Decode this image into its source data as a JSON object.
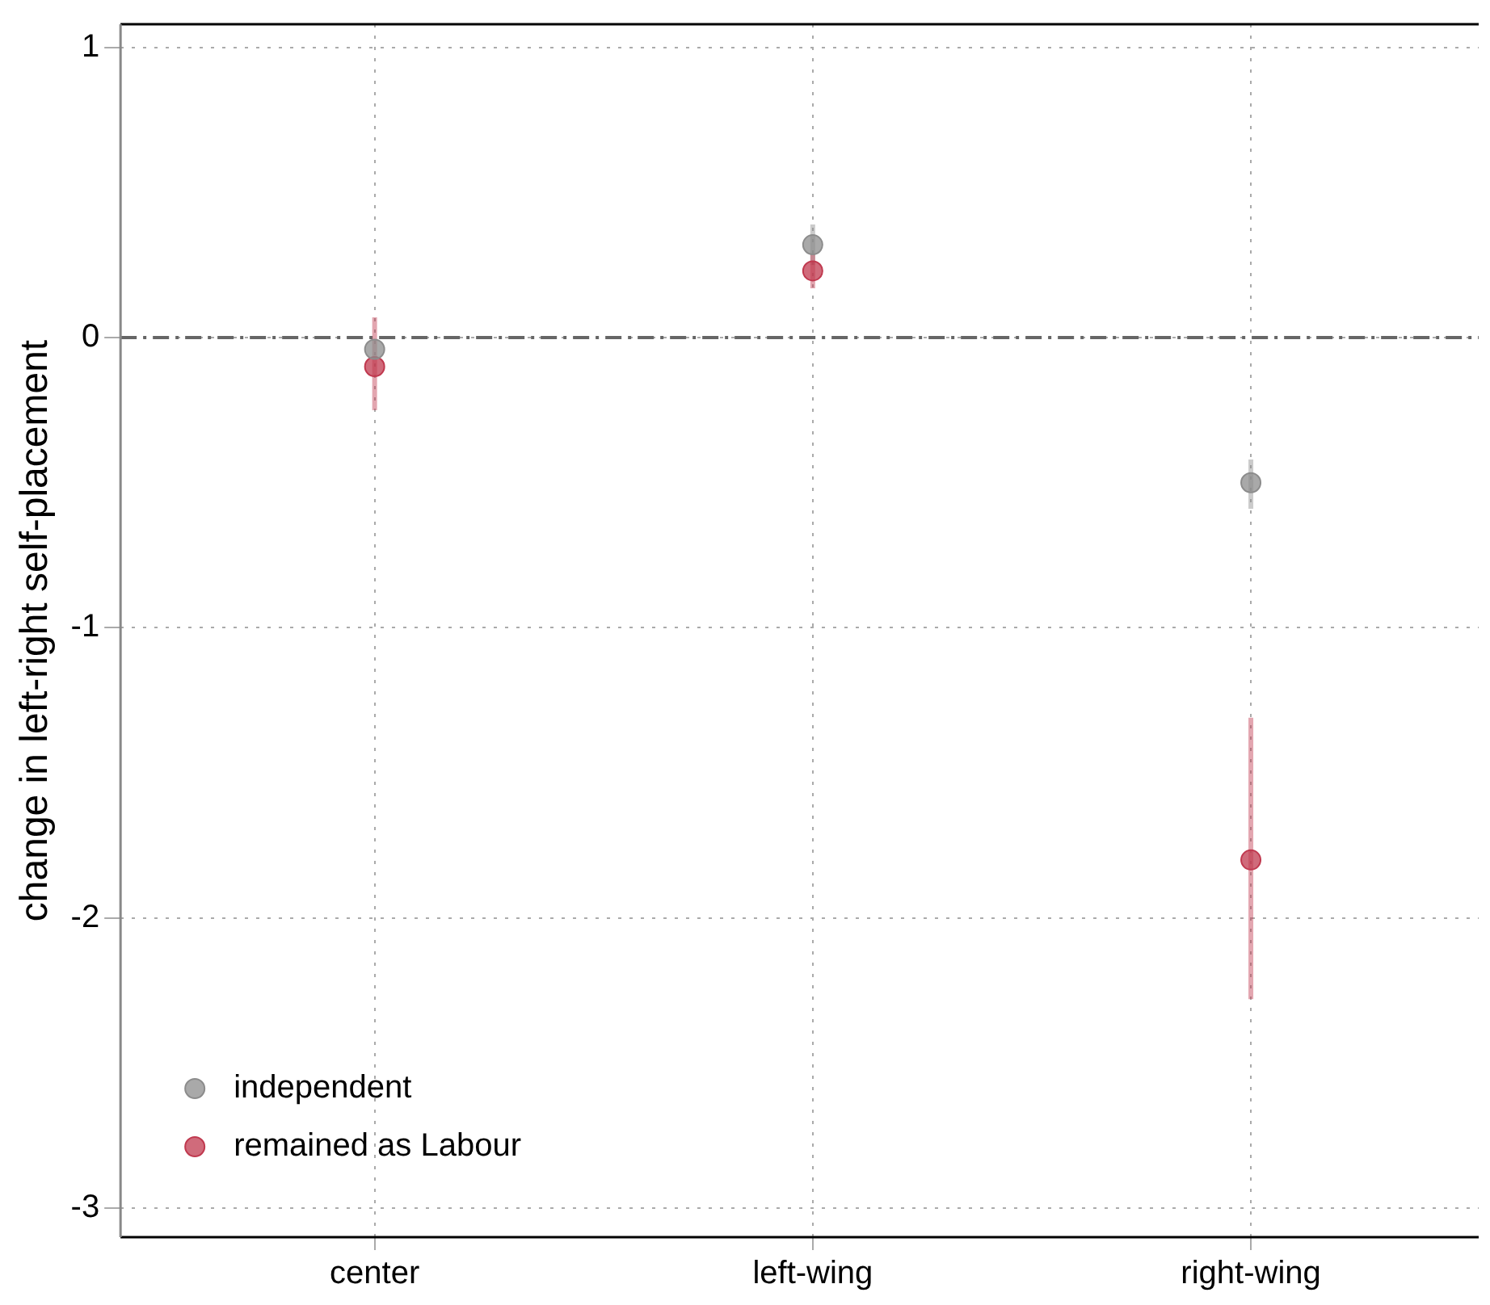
{
  "chart_data": {
    "type": "scatter",
    "ylabel": "change in left-right self-placement",
    "categories": [
      "center",
      "left-wing",
      "right-wing"
    ],
    "series": [
      {
        "name": "independent",
        "color": "#8c8c8c",
        "values": [
          -0.04,
          0.32,
          -0.5
        ],
        "errors": [
          null,
          0.07,
          [
            -0.59,
            -0.42
          ]
        ]
      },
      {
        "name": "remained as Labour",
        "color": "#c0394f",
        "values": [
          -0.1,
          0.23,
          -1.8
        ],
        "errors": [
          [
            -0.25,
            0.07
          ],
          0.06,
          [
            -2.28,
            -1.31
          ]
        ]
      }
    ],
    "ylim": [
      -3.1,
      1.08
    ],
    "yticks": [
      -3,
      -2,
      -1,
      0,
      1
    ],
    "grid": true,
    "legend": "bottom left",
    "marker": "circle",
    "ref_lines": [
      {
        "axis": "y",
        "value": 0,
        "color": "#666666",
        "line_style": "dashed"
      }
    ]
  }
}
